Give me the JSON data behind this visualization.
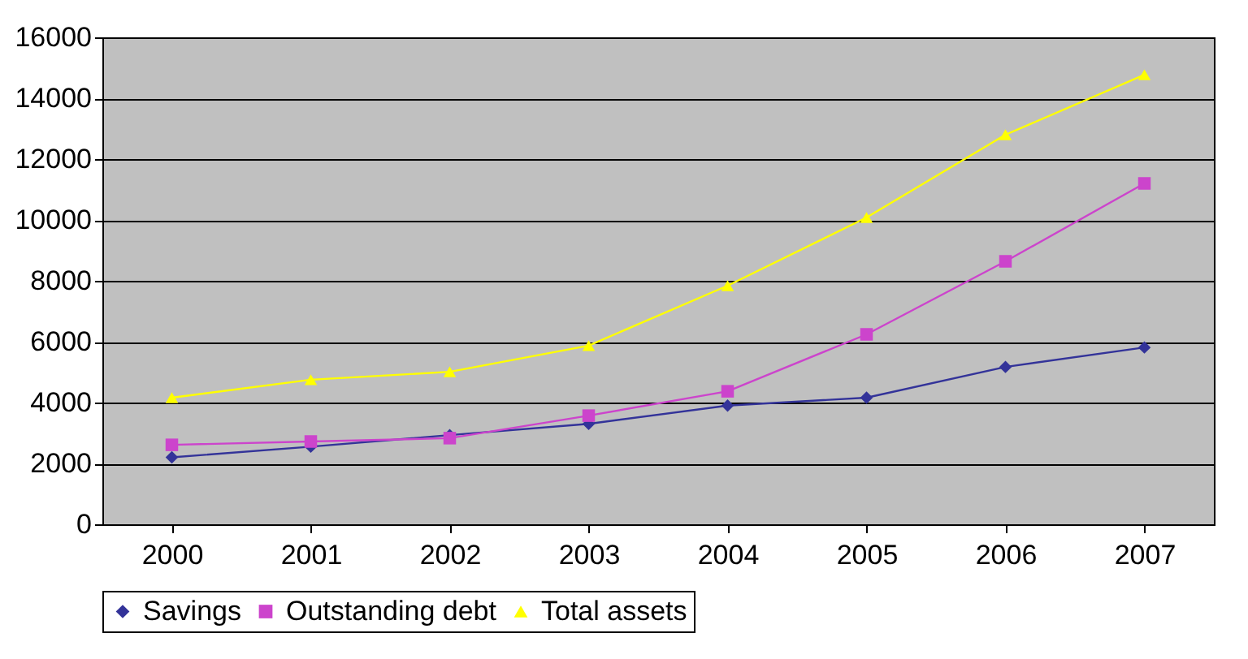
{
  "chart_data": {
    "type": "line",
    "categories": [
      "2000",
      "2001",
      "2002",
      "2003",
      "2004",
      "2005",
      "2006",
      "2007"
    ],
    "series": [
      {
        "name": "Savings",
        "color": "#333399",
        "marker": "diamond",
        "values": [
          2200,
          2550,
          2930,
          3300,
          3900,
          4160,
          5170,
          5810
        ]
      },
      {
        "name": "Outstanding debt",
        "color": "#cc44cc",
        "marker": "square",
        "values": [
          2610,
          2720,
          2830,
          3570,
          4370,
          6240,
          8640,
          11200
        ]
      },
      {
        "name": "Total assets",
        "color": "#ffff00",
        "marker": "triangle",
        "values": [
          4160,
          4750,
          5010,
          5870,
          7840,
          10080,
          12800,
          14770
        ]
      }
    ],
    "ylim": [
      0,
      16000
    ],
    "yticks": [
      0,
      2000,
      4000,
      6000,
      8000,
      10000,
      12000,
      14000,
      16000
    ],
    "grid": "y",
    "legend": "bottom"
  }
}
